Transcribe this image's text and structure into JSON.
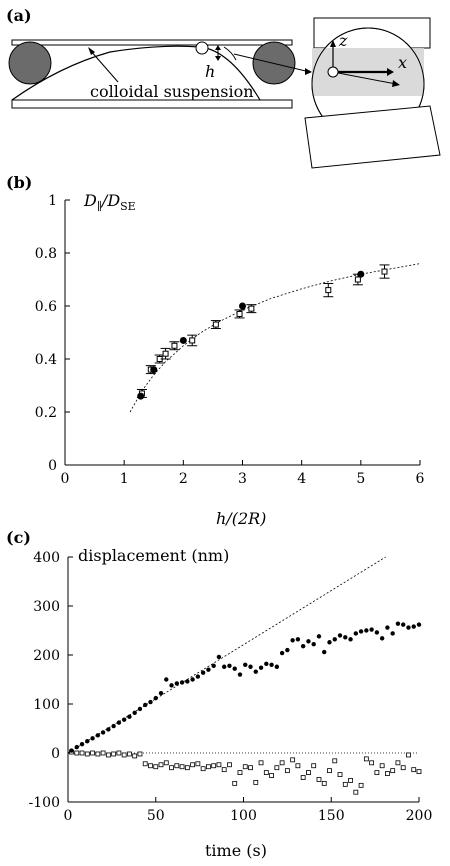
{
  "panels": {
    "a": {
      "label": "(a)",
      "gap_label": "h",
      "suspension_label": "colloidal suspension",
      "axis_z": "z",
      "axis_x": "x"
    }
  },
  "chart_data": [
    {
      "panel_label": "(b)",
      "type": "scatter",
      "ylabel": "D∥/DSE",
      "xlabel": "h/(2R)",
      "xlim": [
        0,
        6
      ],
      "ylim": [
        0,
        1
      ],
      "xticks": [
        "0",
        "1",
        "2",
        "3",
        "4",
        "5",
        "6"
      ],
      "yticks": [
        "0",
        "0.2",
        "0.4",
        "0.6",
        "0.8",
        "1"
      ],
      "series": [
        {
          "marker": "filled-circle",
          "x": [
            1.28,
            1.5,
            2.0,
            3.0,
            5.0
          ],
          "y": [
            0.26,
            0.36,
            0.47,
            0.6,
            0.72
          ]
        },
        {
          "marker": "open-square-errorbar",
          "x": [
            1.3,
            1.45,
            1.6,
            1.7,
            1.85,
            2.15,
            2.55,
            2.95,
            3.15,
            4.45,
            4.95,
            5.4
          ],
          "y": [
            0.27,
            0.36,
            0.4,
            0.42,
            0.45,
            0.47,
            0.53,
            0.57,
            0.59,
            0.66,
            0.7,
            0.73
          ],
          "err": [
            0.015,
            0.015,
            0.015,
            0.02,
            0.015,
            0.02,
            0.015,
            0.015,
            0.015,
            0.025,
            0.02,
            0.025
          ]
        },
        {
          "line": "dashed-fit",
          "x": [
            1.1,
            1.3,
            1.5,
            1.7,
            2.0,
            2.3,
            2.6,
            3.0,
            3.5,
            4.0,
            4.5,
            5.0,
            5.5,
            6.0
          ],
          "y": [
            0.2,
            0.28,
            0.34,
            0.39,
            0.45,
            0.5,
            0.54,
            0.585,
            0.63,
            0.665,
            0.695,
            0.72,
            0.74,
            0.76
          ]
        }
      ]
    },
    {
      "panel_label": "(c)",
      "type": "scatter",
      "ylabel": "displacement (nm)",
      "xlabel": "time (s)",
      "xlim": [
        0,
        200
      ],
      "ylim": [
        -100,
        400
      ],
      "xticks": [
        "0",
        "50",
        "100",
        "150",
        "200"
      ],
      "yticks": [
        "-100",
        "0",
        "100",
        "200",
        "300",
        "400"
      ],
      "series": [
        {
          "marker": "filled-circle",
          "x": [
            2,
            5,
            8,
            11,
            14,
            17,
            20,
            23,
            26,
            29,
            32,
            35,
            38,
            41,
            44,
            47,
            50,
            53,
            56,
            59,
            62,
            65,
            68,
            71,
            74,
            77,
            80,
            83,
            86,
            89,
            92,
            95,
            98,
            101,
            104,
            107,
            110,
            113,
            116,
            119,
            122,
            125,
            128,
            131,
            134,
            137,
            140,
            143,
            146,
            149,
            152,
            155,
            158,
            161,
            164,
            167,
            170,
            173,
            176,
            179,
            182,
            185,
            188,
            191,
            194,
            197,
            200
          ],
          "y": [
            5,
            12,
            18,
            24,
            30,
            36,
            42,
            48,
            55,
            62,
            68,
            74,
            82,
            90,
            98,
            104,
            112,
            122,
            150,
            138,
            142,
            144,
            146,
            150,
            156,
            164,
            170,
            178,
            196,
            176,
            178,
            172,
            160,
            180,
            176,
            166,
            174,
            182,
            180,
            176,
            204,
            210,
            230,
            232,
            218,
            228,
            222,
            238,
            206,
            226,
            232,
            240,
            236,
            232,
            244,
            248,
            250,
            252,
            246,
            234,
            256,
            244,
            264,
            262,
            256,
            258,
            262
          ],
          "_note": ""
        },
        {
          "marker": "open-square",
          "x": [
            2,
            5,
            8,
            11,
            14,
            17,
            20,
            23,
            26,
            29,
            32,
            35,
            38,
            41,
            44,
            47,
            50,
            53,
            56,
            59,
            62,
            65,
            68,
            71,
            74,
            77,
            80,
            83,
            86,
            89,
            92,
            95,
            98,
            101,
            104,
            107,
            110,
            113,
            116,
            119,
            122,
            125,
            128,
            131,
            134,
            137,
            140,
            143,
            146,
            149,
            152,
            155,
            158,
            161,
            164,
            167,
            170,
            173,
            176,
            179,
            182,
            185,
            188,
            191,
            194,
            197,
            200
          ],
          "y": [
            2,
            0,
            0,
            -2,
            0,
            -2,
            0,
            -4,
            -2,
            0,
            -4,
            -2,
            -6,
            -2,
            -22,
            -26,
            -28,
            -24,
            -20,
            -30,
            -26,
            -28,
            -30,
            -24,
            -22,
            -32,
            -28,
            -26,
            -24,
            -34,
            -24,
            -62,
            -40,
            -28,
            -30,
            -60,
            -20,
            -40,
            -46,
            -30,
            -20,
            -36,
            -14,
            -26,
            -50,
            -40,
            -26,
            -54,
            -62,
            -36,
            -16,
            -44,
            -64,
            -56,
            -80,
            -66,
            -12,
            -20,
            -40,
            -26,
            -42,
            -36,
            -20,
            -30,
            -4,
            -34,
            -38
          ]
        },
        {
          "line": "dashed-ballistic",
          "x": [
            0,
            181
          ],
          "y": [
            0,
            400
          ]
        },
        {
          "line": "dotted-zero",
          "x": [
            0,
            200
          ],
          "y": [
            0,
            0
          ]
        }
      ]
    }
  ]
}
